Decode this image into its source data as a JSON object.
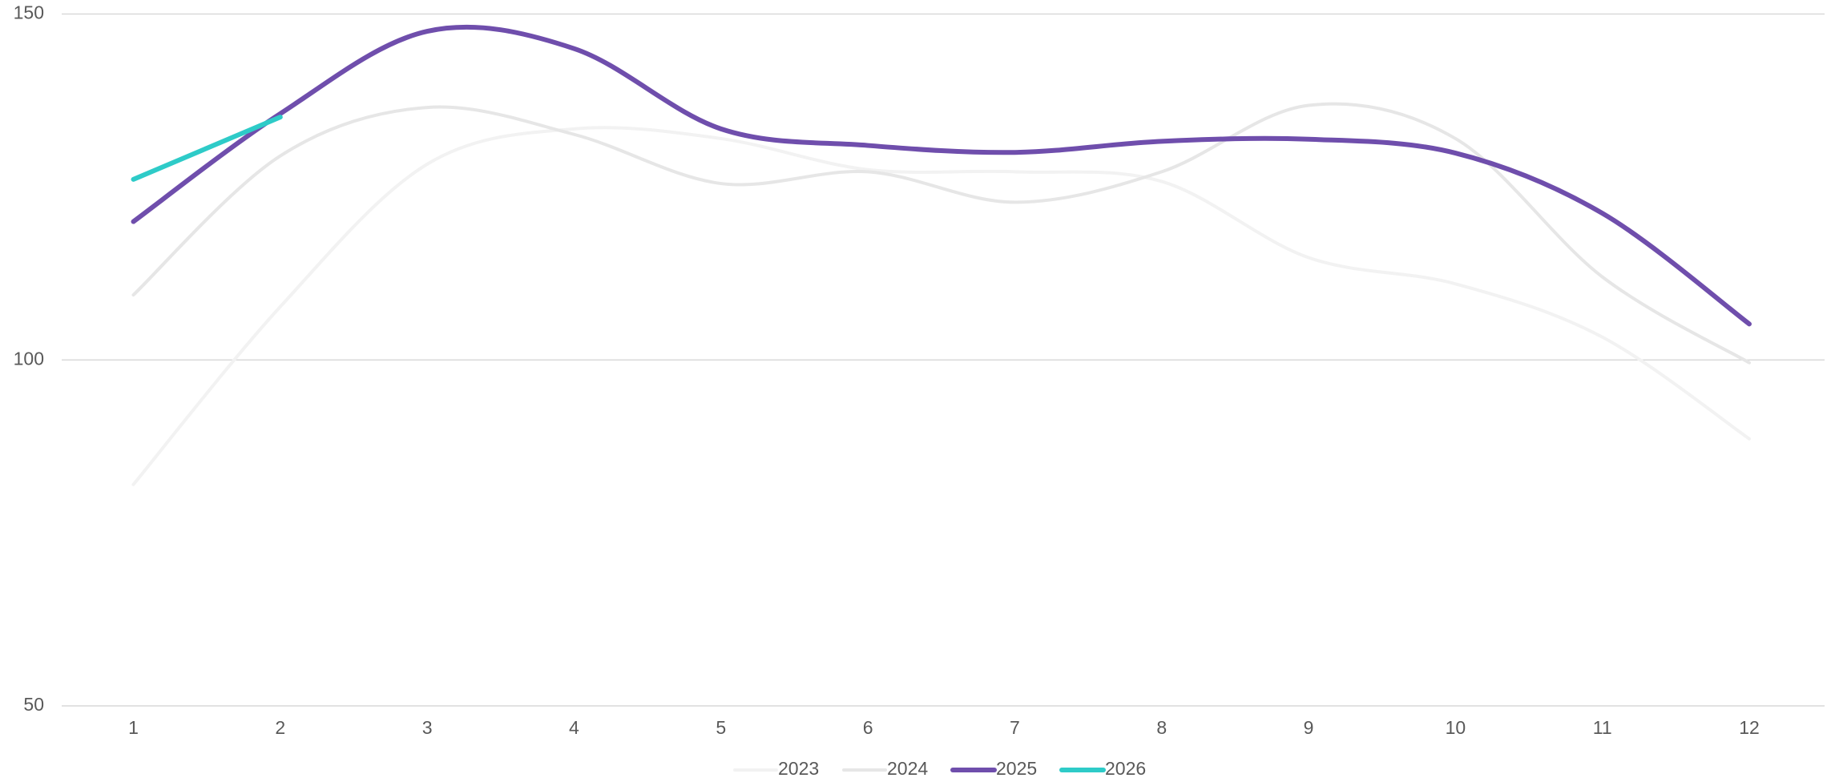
{
  "chart_data": {
    "type": "line",
    "categories": [
      1,
      2,
      3,
      4,
      5,
      6,
      7,
      8,
      9,
      10,
      11,
      12
    ],
    "series": [
      {
        "name": "2023",
        "color": "#f2f2f2",
        "values": [
          82,
          107.7,
          128.3,
          133.4,
          132,
          127.5,
          127.2,
          125.8,
          114.8,
          111,
          103.3,
          88.6
        ]
      },
      {
        "name": "2024",
        "color": "#e6e6e6",
        "values": [
          109.4,
          129.5,
          136.5,
          132.6,
          125.5,
          127.2,
          122.8,
          127.2,
          136.8,
          132,
          112,
          99.6
        ]
      },
      {
        "name": "2025",
        "color": "#6f4eac",
        "values": [
          120,
          135.6,
          147.5,
          145,
          133.4,
          131,
          130,
          131.6,
          131.9,
          129.9,
          121.2,
          105.2
        ]
      },
      {
        "name": "2026",
        "color": "#2ecbc8",
        "values": [
          126.1,
          135.1,
          null,
          null,
          null,
          null,
          null,
          null,
          null,
          null,
          null,
          null
        ]
      }
    ],
    "ylim": [
      50,
      150
    ],
    "yticks": [
      50,
      100,
      150
    ],
    "grid": true,
    "legend": "bottom"
  }
}
